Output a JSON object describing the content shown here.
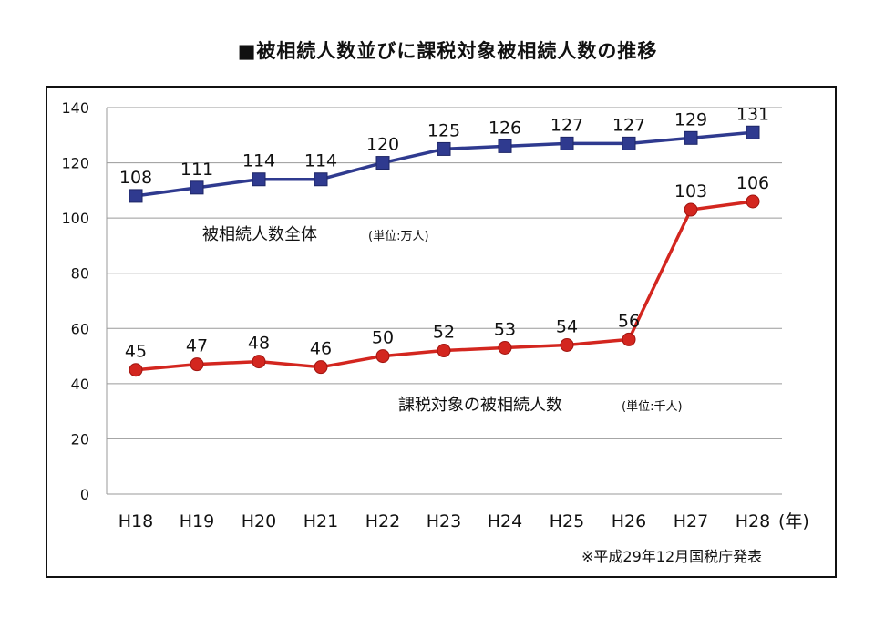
{
  "title": "■被相続人数並びに課税対象被相続人数の推移",
  "source_note": "※平成29年12月国税庁発表",
  "x_unit": "(年)",
  "colors": {
    "series1": "#2f3a8f",
    "series2": "#d3261f",
    "grid": "#9a9a9a"
  },
  "chart_data": {
    "type": "line",
    "title": "■被相続人数並びに課税対象被相続人数の推移",
    "categories": [
      "H18",
      "H19",
      "H20",
      "H21",
      "H22",
      "H23",
      "H24",
      "H25",
      "H26",
      "H27",
      "H28"
    ],
    "ylim": [
      0,
      140
    ],
    "yticks": [
      "0",
      "20",
      "40",
      "60",
      "80",
      "100",
      "120",
      "140"
    ],
    "grid": true,
    "series": [
      {
        "name": "被相続人数全体",
        "unit": "(単位:万人)",
        "values": [
          108,
          111,
          114,
          114,
          120,
          125,
          126,
          127,
          127,
          129,
          131
        ],
        "marker": "square"
      },
      {
        "name": "課税対象の被相続人数",
        "unit": "(単位:千人)",
        "values": [
          45,
          47,
          48,
          46,
          50,
          52,
          53,
          54,
          56,
          103,
          106
        ],
        "marker": "circle"
      }
    ]
  }
}
